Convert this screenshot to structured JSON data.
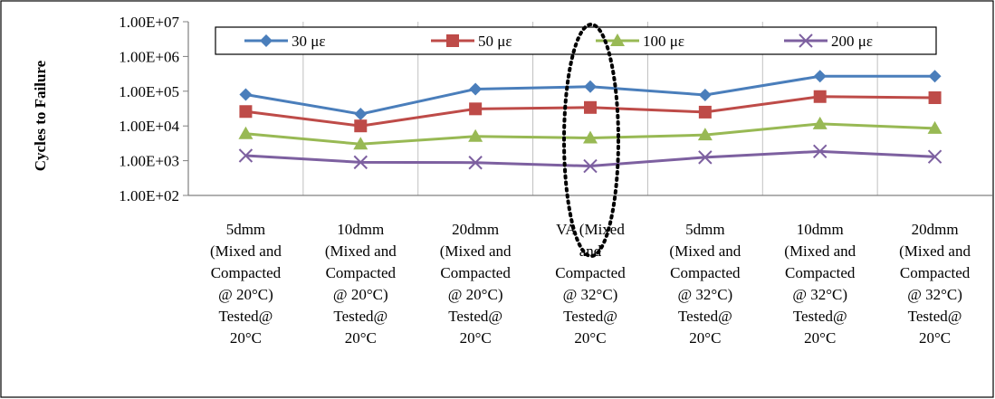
{
  "chart_data": {
    "type": "line",
    "title": "",
    "ylabel": "Cycles to Failure",
    "xlabel": "",
    "y_scale": "log",
    "ylim": [
      100,
      10000000
    ],
    "y_ticks": [
      100,
      1000,
      10000,
      100000,
      1000000,
      10000000
    ],
    "y_tick_labels": [
      "1.00E+02",
      "1.00E+03",
      "1.00E+04",
      "1.00E+05",
      "1.00E+06",
      "1.00E+07"
    ],
    "grid": "vertical category lines",
    "legend_position": "top",
    "categories": [
      [
        "5dmm",
        "(Mixed and",
        "Compacted",
        "@ 20°C)",
        "Tested@",
        "20°C"
      ],
      [
        "10dmm",
        "(Mixed and",
        "Compacted",
        "@ 20°C)",
        "Tested@",
        "20°C"
      ],
      [
        "20dmm",
        "(Mixed and",
        "Compacted",
        "@ 20°C)",
        "Tested@",
        "20°C"
      ],
      [
        "VA (Mixed",
        "and",
        "Compacted",
        "@ 32°C)",
        "Tested@",
        "20°C"
      ],
      [
        "5dmm",
        "(Mixed and",
        "Compacted",
        "@ 32°C)",
        "Tested@",
        "20°C"
      ],
      [
        "10dmm",
        "(Mixed and",
        "Compacted",
        "@ 32°C)",
        "Tested@",
        "20°C"
      ],
      [
        "20dmm",
        "(Mixed and",
        "Compacted",
        "@ 32°C)",
        "Tested@",
        "20°C"
      ]
    ],
    "series": [
      {
        "name": "30 με",
        "color": "#4a7ebb",
        "marker": "diamond",
        "values": [
          80000,
          22000,
          115000,
          135000,
          78000,
          270000,
          270000
        ]
      },
      {
        "name": "50 με",
        "color": "#be4b48",
        "marker": "square",
        "values": [
          26000,
          10000,
          31000,
          34000,
          25000,
          70000,
          65000
        ]
      },
      {
        "name": "100 με",
        "color": "#98b954",
        "marker": "triangle",
        "values": [
          6000,
          3000,
          5000,
          4500,
          5500,
          11500,
          8500
        ]
      },
      {
        "name": "200 με",
        "color": "#7d60a0",
        "marker": "x",
        "values": [
          1400,
          900,
          880,
          700,
          1250,
          1850,
          1300
        ]
      }
    ],
    "annotation": "dotted ellipse around VA column"
  }
}
